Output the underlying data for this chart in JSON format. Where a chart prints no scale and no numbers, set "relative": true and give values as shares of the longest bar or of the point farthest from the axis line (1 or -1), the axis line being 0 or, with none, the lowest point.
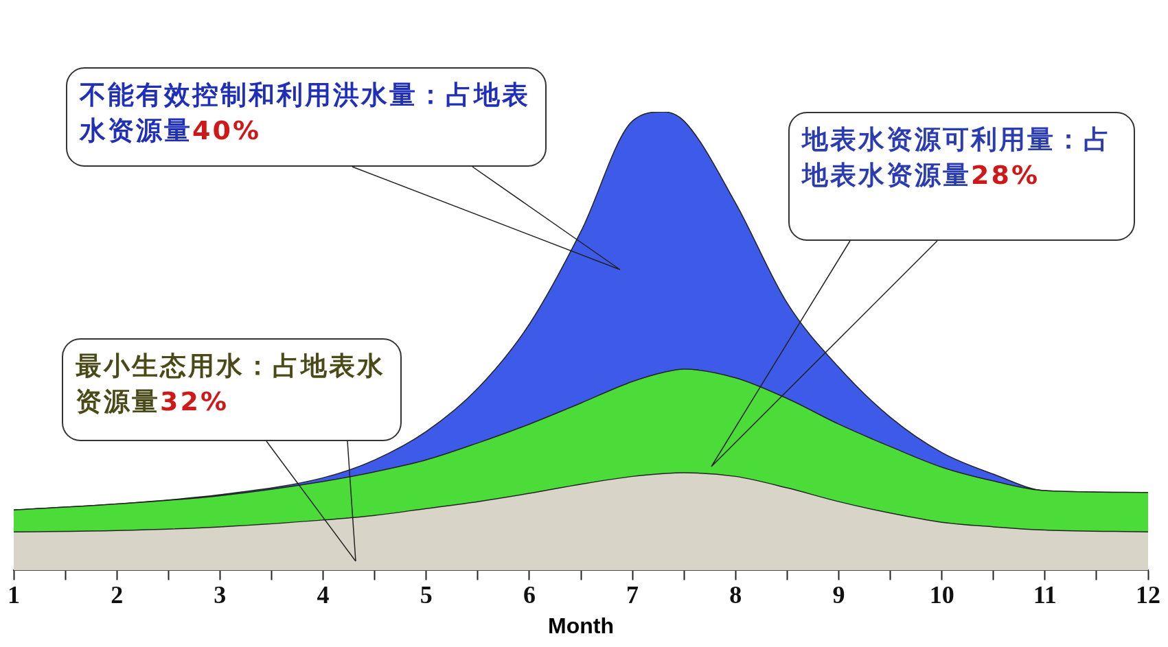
{
  "chart_data": {
    "type": "area",
    "stacked": true,
    "relative": true,
    "xlabel": "Month",
    "legend": false,
    "x": [
      1,
      2,
      3,
      4,
      4.5,
      5,
      5.5,
      6,
      6.5,
      7,
      7.3,
      7.5,
      8,
      8.5,
      9,
      9.5,
      10,
      10.5,
      11,
      12
    ],
    "xlim": [
      1,
      12
    ],
    "xticks": [
      1,
      {
        "value": 1.5,
        "label": null
      },
      2,
      {
        "value": 2.5,
        "label": null
      },
      3,
      {
        "value": 3.5,
        "label": null
      },
      4,
      {
        "value": 4.5,
        "label": null
      },
      5,
      {
        "value": 5.5,
        "label": null
      },
      6,
      {
        "value": 6.5,
        "label": null
      },
      7,
      {
        "value": 7.5,
        "label": null
      },
      8,
      {
        "value": 8.5,
        "label": null
      },
      9,
      {
        "value": 9.5,
        "label": null
      },
      10,
      {
        "value": 10.5,
        "label": null
      },
      11,
      {
        "value": 11.5,
        "label": null
      },
      12
    ],
    "series": [
      {
        "color": "#d8d4c8",
        "values": [
          0.084,
          0.087,
          0.095,
          0.11,
          0.12,
          0.135,
          0.15,
          0.168,
          0.188,
          0.205,
          0.211,
          0.213,
          0.205,
          0.18,
          0.15,
          0.125,
          0.105,
          0.095,
          0.088,
          0.084
        ]
      },
      {
        "color": "#4cdc3a",
        "values": [
          0.048,
          0.058,
          0.068,
          0.084,
          0.095,
          0.106,
          0.128,
          0.151,
          0.177,
          0.207,
          0.221,
          0.226,
          0.215,
          0.195,
          0.169,
          0.145,
          0.12,
          0.1,
          0.086,
          0.086
        ]
      },
      {
        "color": "#3d5be8",
        "values": [
          0,
          0,
          0.002,
          0.008,
          0.026,
          0.062,
          0.119,
          0.218,
          0.374,
          0.568,
          0.568,
          0.541,
          0.381,
          0.208,
          0.124,
          0.064,
          0.032,
          0.015,
          0,
          0
        ]
      }
    ],
    "annotations": [
      "不能有效控制和利用洪水量：占地表水资源量40%",
      "地表水资源可利用量：占地表水资源量28%",
      "最小生态用水：占地表水资源量32%"
    ]
  }
}
